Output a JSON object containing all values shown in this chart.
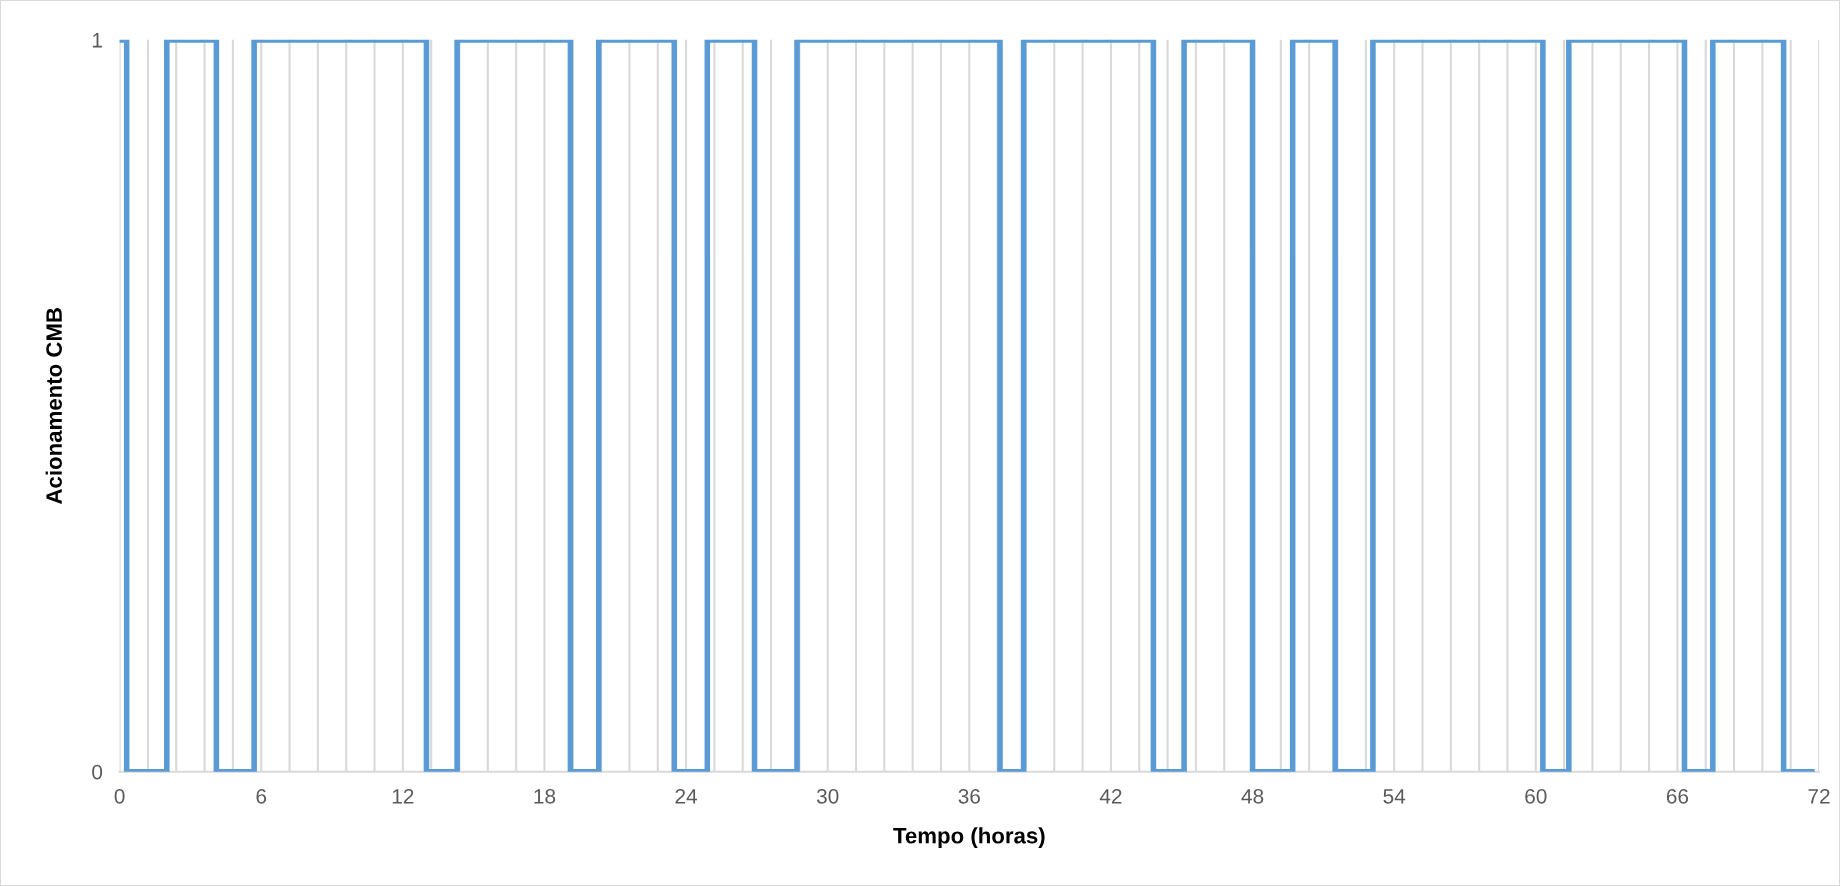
{
  "chart_data": {
    "type": "line",
    "xlabel": "Tempo (horas)",
    "ylabel": "Acionamento CMB",
    "x": [
      0,
      0.3,
      0.3,
      2.0,
      2.0,
      4.1,
      4.1,
      5.7,
      5.7,
      13.0,
      13.0,
      14.3,
      14.3,
      19.1,
      19.1,
      20.3,
      20.3,
      23.5,
      23.5,
      24.9,
      24.9,
      26.9,
      26.9,
      28.7,
      28.7,
      37.3,
      37.3,
      38.3,
      38.3,
      43.8,
      43.8,
      45.1,
      45.1,
      48.0,
      48.0,
      49.7,
      49.7,
      51.5,
      51.5,
      53.1,
      53.1,
      60.3,
      60.3,
      61.4,
      61.4,
      66.3,
      66.3,
      67.5,
      67.5,
      70.5,
      70.5,
      71.7
    ],
    "series": [
      {
        "color": "#5b9bd5",
        "values": [
          1,
          1,
          0,
          0,
          1,
          1,
          0,
          0,
          1,
          1,
          0,
          0,
          1,
          1,
          0,
          0,
          1,
          1,
          0,
          0,
          1,
          1,
          0,
          0,
          1,
          1,
          0,
          0,
          1,
          1,
          0,
          0,
          1,
          1,
          0,
          0,
          1,
          1,
          0,
          0,
          1,
          1,
          0,
          0,
          1,
          1,
          0,
          0,
          1,
          1,
          0,
          0
        ]
      }
    ],
    "xlim": [
      0,
      72
    ],
    "xticks": [
      0,
      {
        "value": 1.2,
        "label": null
      },
      {
        "value": 2.4,
        "label": null
      },
      {
        "value": 3.6,
        "label": null
      },
      {
        "value": 4.8,
        "label": null
      },
      6,
      {
        "value": 7.2,
        "label": null
      },
      {
        "value": 8.4,
        "label": null
      },
      {
        "value": 9.6,
        "label": null
      },
      {
        "value": 10.8,
        "label": null
      },
      12,
      {
        "value": 13.2,
        "label": null
      },
      {
        "value": 14.4,
        "label": null
      },
      {
        "value": 15.6,
        "label": null
      },
      {
        "value": 16.8,
        "label": null
      },
      18,
      {
        "value": 19.2,
        "label": null
      },
      {
        "value": 20.4,
        "label": null
      },
      {
        "value": 21.6,
        "label": null
      },
      {
        "value": 22.8,
        "label": null
      },
      24,
      {
        "value": 25.2,
        "label": null
      },
      {
        "value": 26.4,
        "label": null
      },
      {
        "value": 27.6,
        "label": null
      },
      {
        "value": 28.8,
        "label": null
      },
      30,
      {
        "value": 31.2,
        "label": null
      },
      {
        "value": 32.4,
        "label": null
      },
      {
        "value": 33.6,
        "label": null
      },
      {
        "value": 34.8,
        "label": null
      },
      36,
      {
        "value": 37.2,
        "label": null
      },
      {
        "value": 38.4,
        "label": null
      },
      {
        "value": 39.6,
        "label": null
      },
      {
        "value": 40.8,
        "label": null
      },
      42,
      {
        "value": 43.2,
        "label": null
      },
      {
        "value": 44.4,
        "label": null
      },
      {
        "value": 45.6,
        "label": null
      },
      {
        "value": 46.8,
        "label": null
      },
      48,
      {
        "value": 49.2,
        "label": null
      },
      {
        "value": 50.4,
        "label": null
      },
      {
        "value": 51.6,
        "label": null
      },
      {
        "value": 52.8,
        "label": null
      },
      54,
      {
        "value": 55.2,
        "label": null
      },
      {
        "value": 56.4,
        "label": null
      },
      {
        "value": 57.6,
        "label": null
      },
      {
        "value": 58.8,
        "label": null
      },
      60,
      {
        "value": 61.2,
        "label": null
      },
      {
        "value": 62.4,
        "label": null
      },
      {
        "value": 63.6,
        "label": null
      },
      {
        "value": 64.8,
        "label": null
      },
      66,
      {
        "value": 67.2,
        "label": null
      },
      {
        "value": 68.4,
        "label": null
      },
      {
        "value": 69.6,
        "label": null
      },
      {
        "value": 70.8,
        "label": null
      },
      72
    ],
    "ylim": [
      0,
      1
    ],
    "yticks": [
      0,
      1
    ],
    "grid": "x",
    "line_style": "solid"
  }
}
